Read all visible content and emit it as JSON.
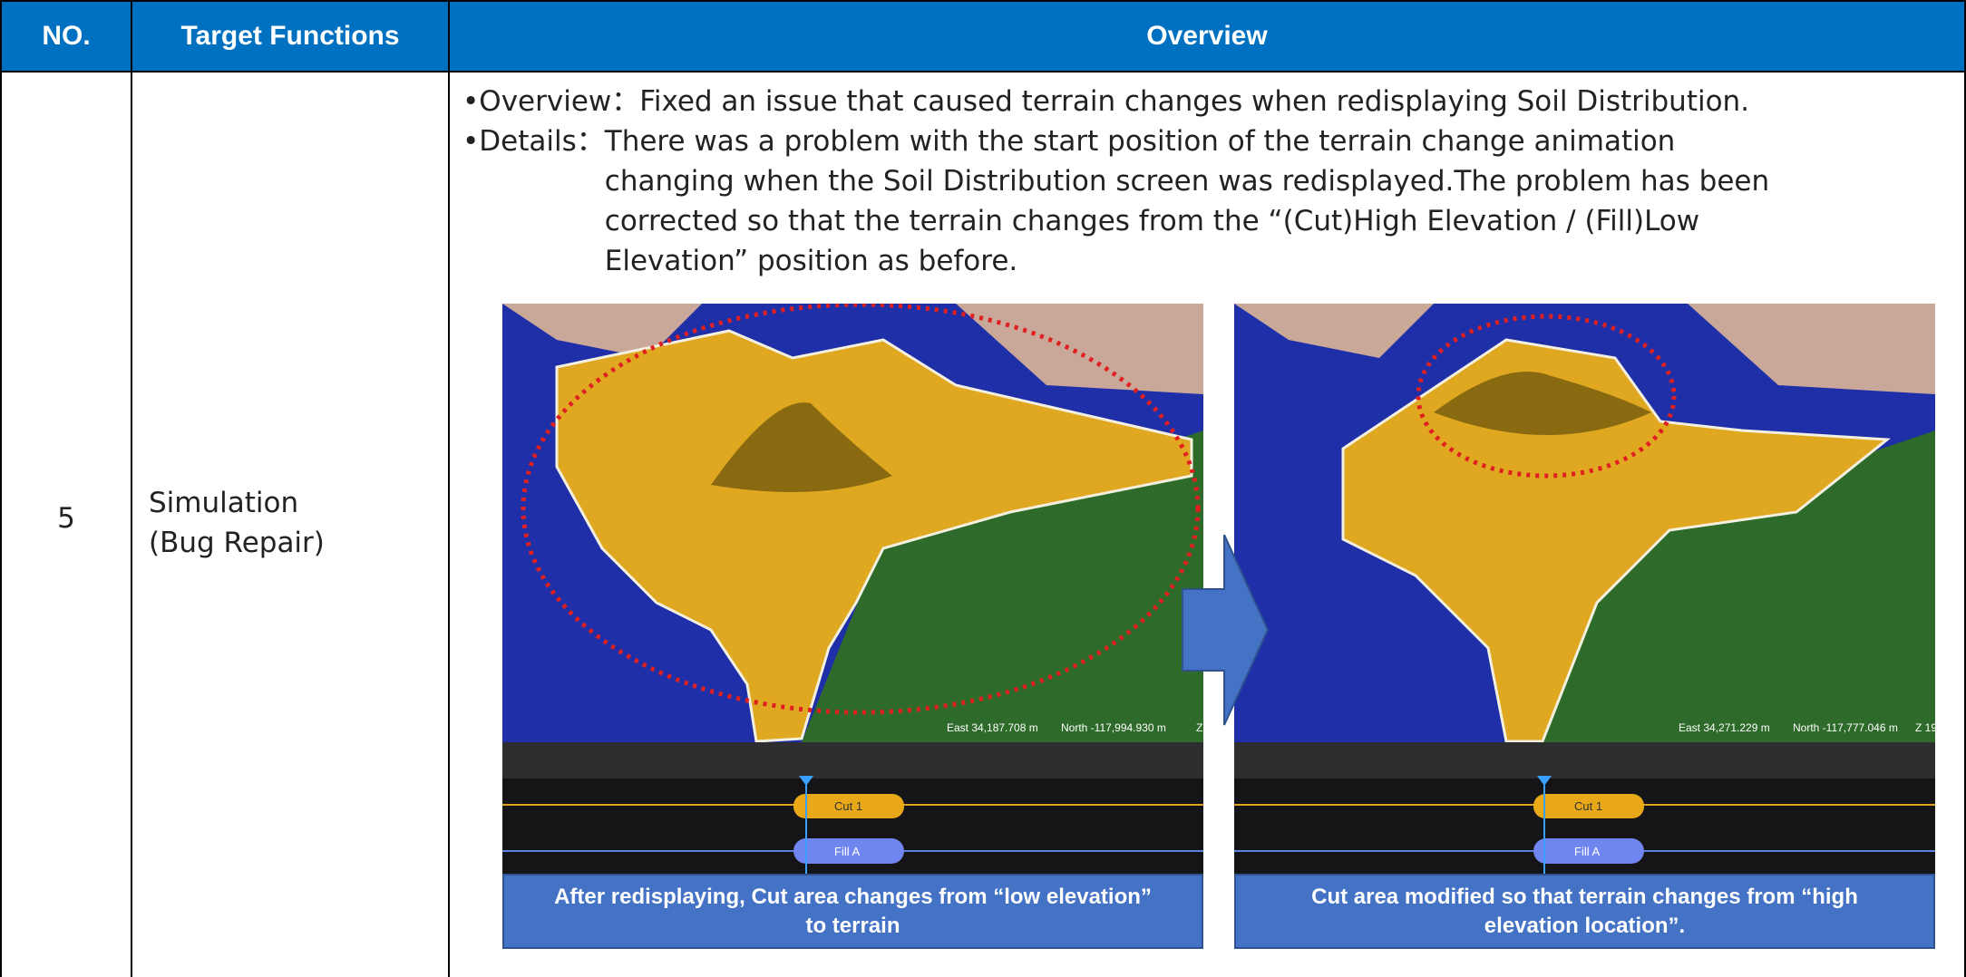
{
  "header": {
    "no": "NO.",
    "function": "Target Functions",
    "overview": "Overview"
  },
  "row": {
    "no": "5",
    "function_lines": [
      "Simulation",
      "(Bug Repair)"
    ],
    "bullets": [
      {
        "label": "Overview：",
        "lines": [
          "Fixed an issue that caused terrain changes when redisplaying Soil Distribution."
        ]
      },
      {
        "label": "Details：",
        "lines": [
          "There was a problem with the start position of the terrain change animation",
          "changing when the Soil Distribution screen was redisplayed.The problem has been",
          "corrected so that the terrain changes from the “(Cut)High Elevation / (Fill)Low",
          "Elevation” position as before."
        ]
      }
    ],
    "panels": [
      {
        "east": "East 34,187.708 m",
        "north": "North -117,994.930 m",
        "z": "Z",
        "cut": "Cut 1",
        "fill": "Fill A",
        "caption_lines": [
          "After redisplaying, Cut area changes from “low elevation”",
          "to terrain"
        ]
      },
      {
        "east": "East 34,271.229 m",
        "north": "North -117,777.046 m",
        "z": "Z 19",
        "cut": "Cut 1",
        "fill": "Fill A",
        "caption_lines": [
          "Cut area modified so that terrain changes from “high",
          "elevation location”."
        ]
      }
    ]
  }
}
